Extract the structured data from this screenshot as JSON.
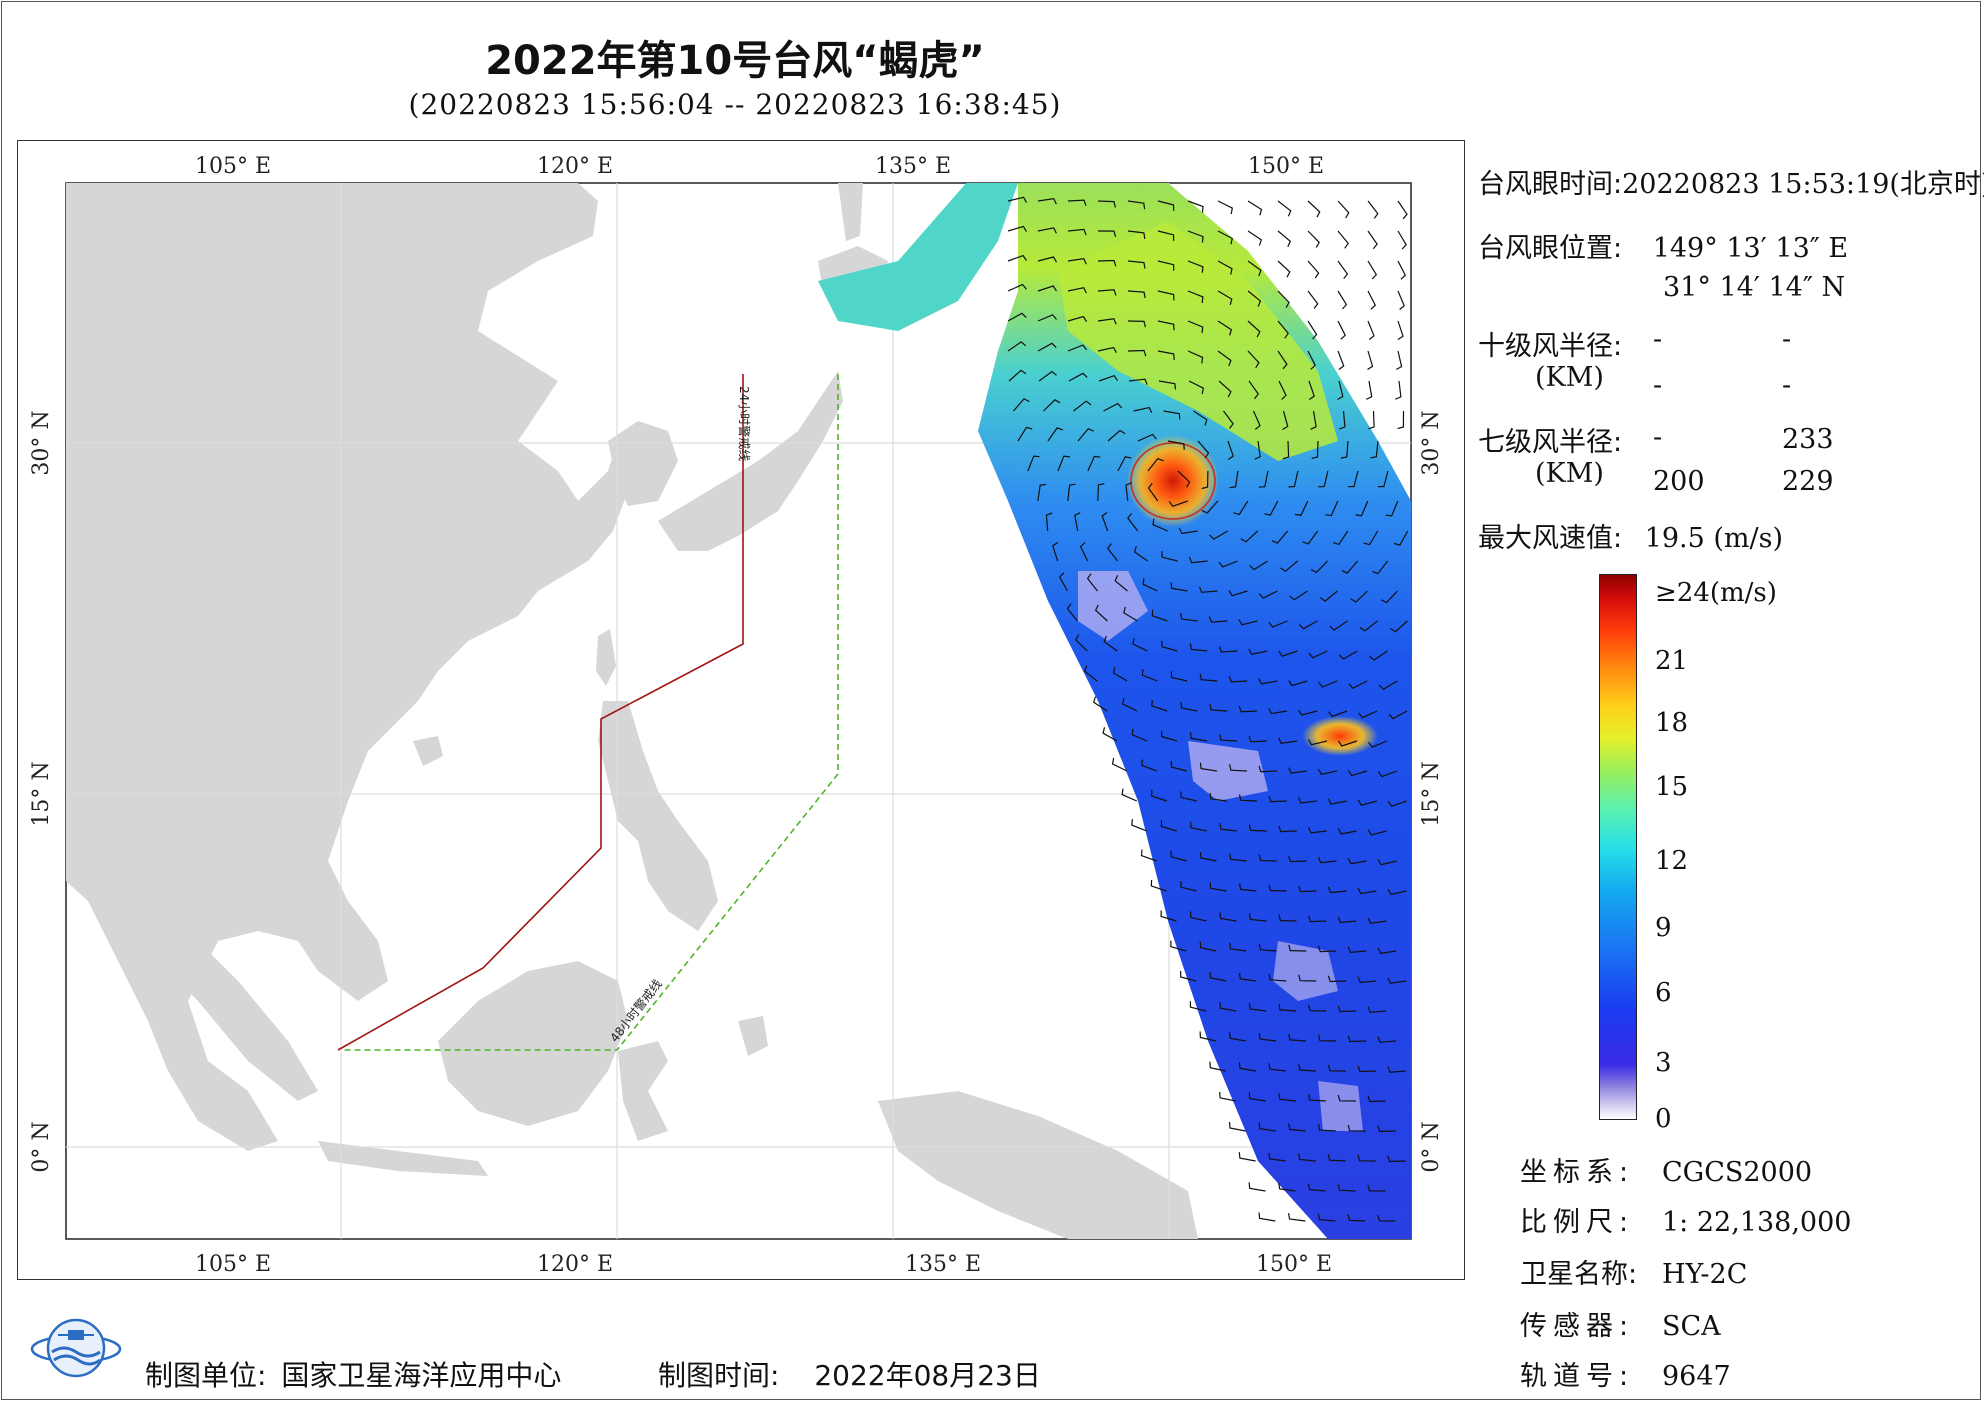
{
  "title": "2022年第10号台风“蝎虎”",
  "subtitle": "(20220823 15:56:04 -- 20220823 16:38:45)",
  "map": {
    "lon_ticks_top": [
      "105° E",
      "120° E",
      "135° E",
      "150° E"
    ],
    "lon_ticks_bottom": [
      "105° E",
      "120° E",
      "135° E",
      "150° E"
    ],
    "lat_ticks_left": [
      "30° N",
      "15° N",
      "0° N"
    ],
    "lat_ticks_right": [
      "30° N",
      "15° N",
      "0° N"
    ],
    "warning_24h_label": "24小时警戒线",
    "warning_48h_label": "48小时警戒线",
    "warning_24h_color": "#a01414",
    "warning_48h_color": "#4fb526",
    "land_color": "#d6d6d6"
  },
  "info": {
    "eye_time_label": "台风眼时间:",
    "eye_time_value": "20220823 15:53:19(北京时)",
    "eye_pos_label": "台风眼位置:",
    "eye_lon": "149° 13′ 13″ E",
    "eye_lat": "31° 14′ 14″ N",
    "r10_label": "十级风半径:",
    "r10_unit": "(KM)",
    "r10_values": [
      "-",
      "-",
      "-",
      "-"
    ],
    "r7_label": "七级风半径:",
    "r7_unit": "(KM)",
    "r7_values": [
      "-",
      "233",
      "200",
      "229"
    ],
    "max_wind_label": "最大风速值:",
    "max_wind_value": "19.5 (m/s)"
  },
  "legend": {
    "labels": [
      "≥24(m/s)",
      "21",
      "18",
      "15",
      "12",
      "9",
      "6",
      "3",
      "0"
    ]
  },
  "meta": {
    "crs_label": "坐标系:",
    "crs_value": "CGCS2000",
    "scale_label": "比例尺:",
    "scale_value": "1: 22,138,000",
    "satellite_label": "卫星名称:",
    "satellite_value": "HY-2C",
    "sensor_label": "传感器:",
    "sensor_value": "SCA",
    "orbit_label": "轨道号:",
    "orbit_value": "9647"
  },
  "footer": {
    "maker_label": "制图单位:",
    "maker_value": "国家卫星海洋应用中心",
    "time_label": "制图时间:",
    "time_value": "2022年08月23日"
  }
}
